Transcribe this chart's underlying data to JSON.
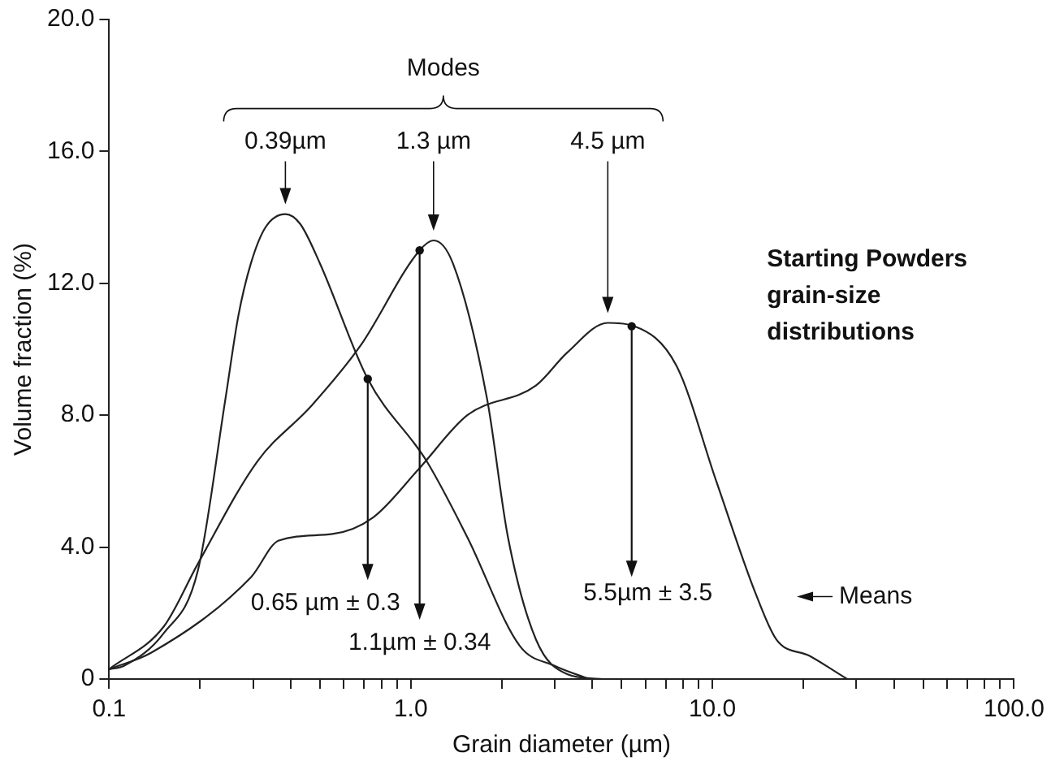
{
  "chart_data": {
    "type": "line",
    "title": "Starting Powders grain-size distributions",
    "xlabel": "Grain diameter (µm)",
    "ylabel": "Volume fraction (%)",
    "log": "x",
    "xlim": [
      0.1,
      100
    ],
    "xticks": [
      {
        "value": 0.1,
        "label": "0.1"
      },
      {
        "value": 0.2,
        "label": null
      },
      {
        "value": 0.3,
        "label": null
      },
      {
        "value": 0.4,
        "label": null
      },
      {
        "value": 0.5,
        "label": null
      },
      {
        "value": 0.6,
        "label": null
      },
      {
        "value": 0.7,
        "label": null
      },
      {
        "value": 0.8,
        "label": null
      },
      {
        "value": 0.9,
        "label": null
      },
      {
        "value": 1,
        "label": "1.0"
      },
      {
        "value": 2,
        "label": null
      },
      {
        "value": 3,
        "label": null
      },
      {
        "value": 4,
        "label": null
      },
      {
        "value": 5,
        "label": null
      },
      {
        "value": 6,
        "label": null
      },
      {
        "value": 7,
        "label": null
      },
      {
        "value": 8,
        "label": null
      },
      {
        "value": 9,
        "label": null
      },
      {
        "value": 10,
        "label": "10.0"
      },
      {
        "value": 20,
        "label": null
      },
      {
        "value": 30,
        "label": null
      },
      {
        "value": 40,
        "label": null
      },
      {
        "value": 50,
        "label": null
      },
      {
        "value": 60,
        "label": null
      },
      {
        "value": 70,
        "label": null
      },
      {
        "value": 80,
        "label": null
      },
      {
        "value": 90,
        "label": null
      },
      {
        "value": 100,
        "label": "100.0"
      }
    ],
    "ylim": [
      0,
      20
    ],
    "yticks": [
      0,
      {
        "value": 4,
        "label": "4.0"
      },
      {
        "value": 8,
        "label": "8.0"
      },
      {
        "value": 12,
        "label": "12.0"
      },
      {
        "value": 16,
        "label": "16.0"
      },
      {
        "value": 20,
        "label": "20.0"
      }
    ],
    "grid": false,
    "legend": false,
    "marker": "none",
    "line_style": "solid",
    "series": [
      {
        "color": "#222222",
        "x": [
          0.1,
          0.112,
          0.152,
          0.197,
          0.243,
          0.268,
          0.295,
          0.33,
          0.384,
          0.43,
          0.5,
          0.72,
          1.13,
          1.54,
          2.3,
          3.0,
          3.9
        ],
        "values": [
          0.3,
          0.4,
          1.4,
          3.3,
          8.5,
          11,
          12.6,
          13.7,
          14.1,
          13.8,
          12.6,
          9.1,
          6.6,
          4.3,
          1.0,
          0.4,
          0
        ]
      },
      {
        "color": "#222222",
        "x": [
          0.1,
          0.152,
          0.197,
          0.31,
          0.47,
          0.68,
          1.07,
          1.19,
          1.38,
          1.79,
          2.1,
          2.6,
          3.3,
          4.3
        ],
        "values": [
          0.3,
          1.6,
          3.5,
          6.6,
          8.3,
          10.1,
          13.0,
          13.3,
          12.6,
          8.5,
          4.3,
          1.2,
          0.15,
          0
        ]
      },
      {
        "color": "#222222",
        "x": [
          0.1,
          0.138,
          0.296,
          0.365,
          0.55,
          0.75,
          1.07,
          1.54,
          2.6,
          3.3,
          4.5,
          5.5,
          7.6,
          10.3,
          13.9,
          16.3,
          21,
          28
        ],
        "values": [
          0.3,
          0.8,
          3.1,
          4.2,
          4.4,
          4.9,
          6.4,
          8.0,
          8.9,
          9.9,
          10.8,
          10.7,
          9.5,
          6.0,
          2.6,
          1.2,
          0.7,
          0
        ]
      }
    ],
    "annotations": [
      "0.39µm",
      "1.3 µm",
      "4.5 µm",
      {
        "text": "0.65 µm ± 0.3",
        "x": 0.72,
        "y": 9.1
      },
      {
        "text": "1.1µm ± 0.34",
        "x": 1.07,
        "y": 13.0
      },
      {
        "text": "5.5µm ± 3.5",
        "x": 5.4,
        "y": 10.7
      },
      "Modes",
      "Means"
    ]
  }
}
